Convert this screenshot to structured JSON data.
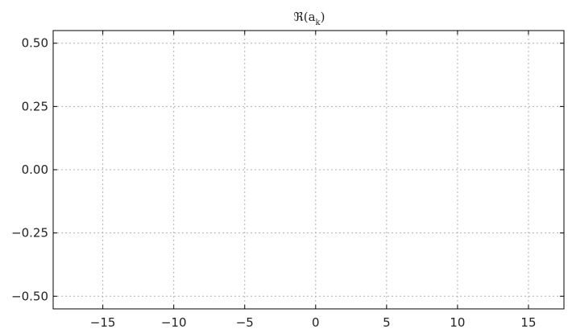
{
  "chart_data": {
    "type": "line",
    "title": "ℜ(a_k)",
    "title_main": "ℜ(a",
    "title_sub": "k",
    "title_close": ")",
    "xlabel": "",
    "ylabel": "",
    "xlim": [
      -18.5,
      17.5
    ],
    "ylim": [
      -0.55,
      0.55
    ],
    "x_ticks": [
      -15,
      -10,
      -5,
      0,
      5,
      10,
      15
    ],
    "x_tick_labels": [
      "−15",
      "−10",
      "−5",
      "0",
      "5",
      "10",
      "15"
    ],
    "y_ticks": [
      0.5,
      0.25,
      0.0,
      -0.25,
      -0.5
    ],
    "y_tick_labels": [
      "0.50",
      "0.25",
      "0.00",
      "−0.25",
      "−0.50"
    ],
    "grid": true,
    "series": [],
    "colors": {
      "axes": "#000000",
      "grid": "#b0b0b0",
      "text": "#222222"
    }
  }
}
